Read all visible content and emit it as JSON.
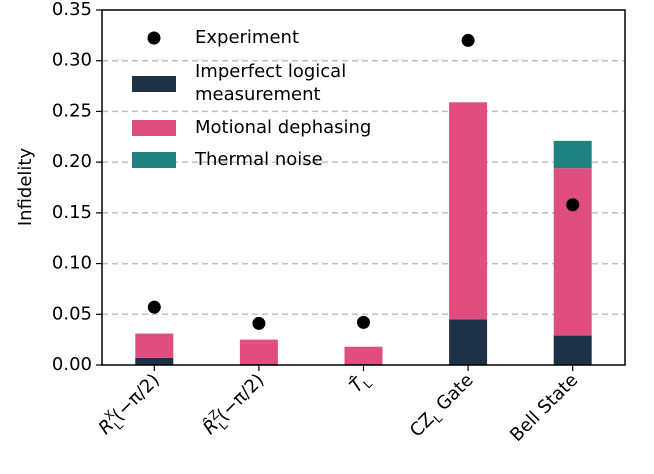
{
  "chart_data": {
    "type": "bar",
    "stacked": true,
    "ylabel": "Infidelity",
    "xlabel": "",
    "ylim": [
      0,
      0.35
    ],
    "yticks": [
      "0.00",
      "0.05",
      "0.10",
      "0.15",
      "0.20",
      "0.25",
      "0.30",
      "0.35"
    ],
    "grid": true,
    "legend_position": "top-left",
    "categories": [
      {
        "main": "R",
        "sup": "X",
        "sub": "L",
        "tail": "(−π/2)",
        "hat": false
      },
      {
        "main": "R",
        "sup": "Z",
        "sub": "L",
        "tail": "(−π/2)",
        "hat": true
      },
      {
        "main": "T",
        "sup": "",
        "sub": "L",
        "tail": "",
        "hat": true
      },
      {
        "main": "CZ",
        "sup": "",
        "sub": "L",
        "tail": " Gate",
        "hat": false
      },
      {
        "main": "Bell State",
        "sup": "",
        "sub": "",
        "tail": "",
        "hat": false
      }
    ],
    "series": [
      {
        "name": "Imperfect logical measurement",
        "legend_lines": [
          "Imperfect logical",
          " measurement"
        ],
        "color": "#1d3147",
        "values": [
          0.007,
          0.001,
          0.001,
          0.045,
          0.029
        ]
      },
      {
        "name": "Motional dephasing",
        "legend_lines": [
          "Motional dephasing"
        ],
        "color": "#e04e7f",
        "values": [
          0.024,
          0.024,
          0.017,
          0.214,
          0.165
        ]
      },
      {
        "name": "Thermal noise",
        "legend_lines": [
          "Thermal noise"
        ],
        "color": "#1f8080",
        "values": [
          0.0,
          0.0,
          0.0,
          0.0,
          0.027
        ]
      }
    ],
    "experiment": {
      "name": "Experiment",
      "color": "#000000",
      "values": [
        0.057,
        0.041,
        0.042,
        0.32,
        0.158
      ]
    }
  }
}
